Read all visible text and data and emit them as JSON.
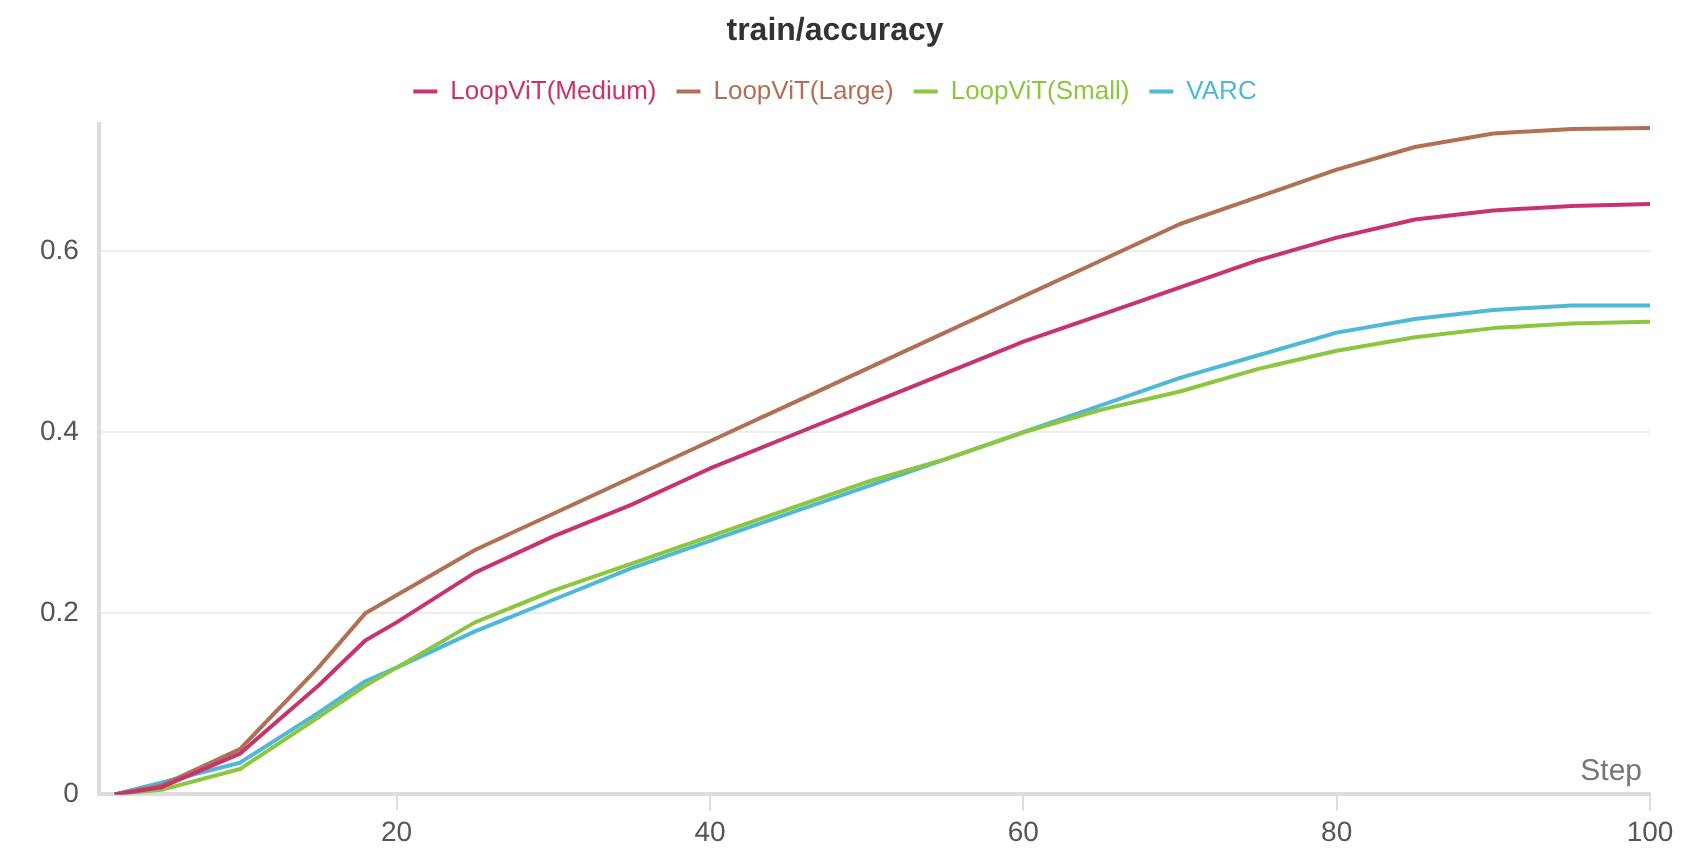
{
  "chart_data": {
    "type": "line",
    "title": "train/accuracy",
    "xlabel": "Step",
    "x": [
      2,
      5,
      10,
      15,
      18,
      20,
      25,
      30,
      35,
      40,
      45,
      50,
      55,
      60,
      65,
      70,
      75,
      80,
      85,
      90,
      95,
      100
    ],
    "series": [
      {
        "name": "LoopViT(Medium)",
        "color": "#c8336f",
        "values": [
          0,
          0.008,
          0.045,
          0.12,
          0.17,
          0.19,
          0.245,
          0.285,
          0.32,
          0.36,
          0.395,
          0.43,
          0.465,
          0.5,
          0.53,
          0.56,
          0.59,
          0.615,
          0.635,
          0.645,
          0.65,
          0.652
        ]
      },
      {
        "name": "LoopViT(Large)",
        "color": "#b07055",
        "values": [
          0,
          0.01,
          0.05,
          0.14,
          0.2,
          0.22,
          0.27,
          0.31,
          0.35,
          0.39,
          0.43,
          0.47,
          0.51,
          0.55,
          0.59,
          0.63,
          0.66,
          0.69,
          0.715,
          0.73,
          0.735,
          0.736
        ]
      },
      {
        "name": "LoopViT(Small)",
        "color": "#8cc63f",
        "values": [
          0,
          0.005,
          0.028,
          0.085,
          0.12,
          0.14,
          0.19,
          0.225,
          0.255,
          0.285,
          0.315,
          0.345,
          0.37,
          0.4,
          0.425,
          0.445,
          0.47,
          0.49,
          0.505,
          0.515,
          0.52,
          0.522
        ]
      },
      {
        "name": "VARC",
        "color": "#4fb8d8",
        "values": [
          0,
          null,
          0.035,
          0.09,
          0.125,
          0.14,
          0.18,
          0.215,
          0.25,
          0.28,
          0.31,
          0.34,
          0.37,
          0.4,
          0.43,
          0.46,
          0.485,
          0.51,
          0.525,
          0.535,
          0.54,
          0.54
        ]
      }
    ],
    "xlim": [
      1,
      100
    ],
    "xticks": [
      20,
      40,
      60,
      80,
      100
    ],
    "ylim": [
      0,
      0.74
    ],
    "yticks": [
      0,
      0.2,
      0.4,
      0.6
    ],
    "grid": "y",
    "legend": "top",
    "marker": "none",
    "line_style": "solid"
  }
}
